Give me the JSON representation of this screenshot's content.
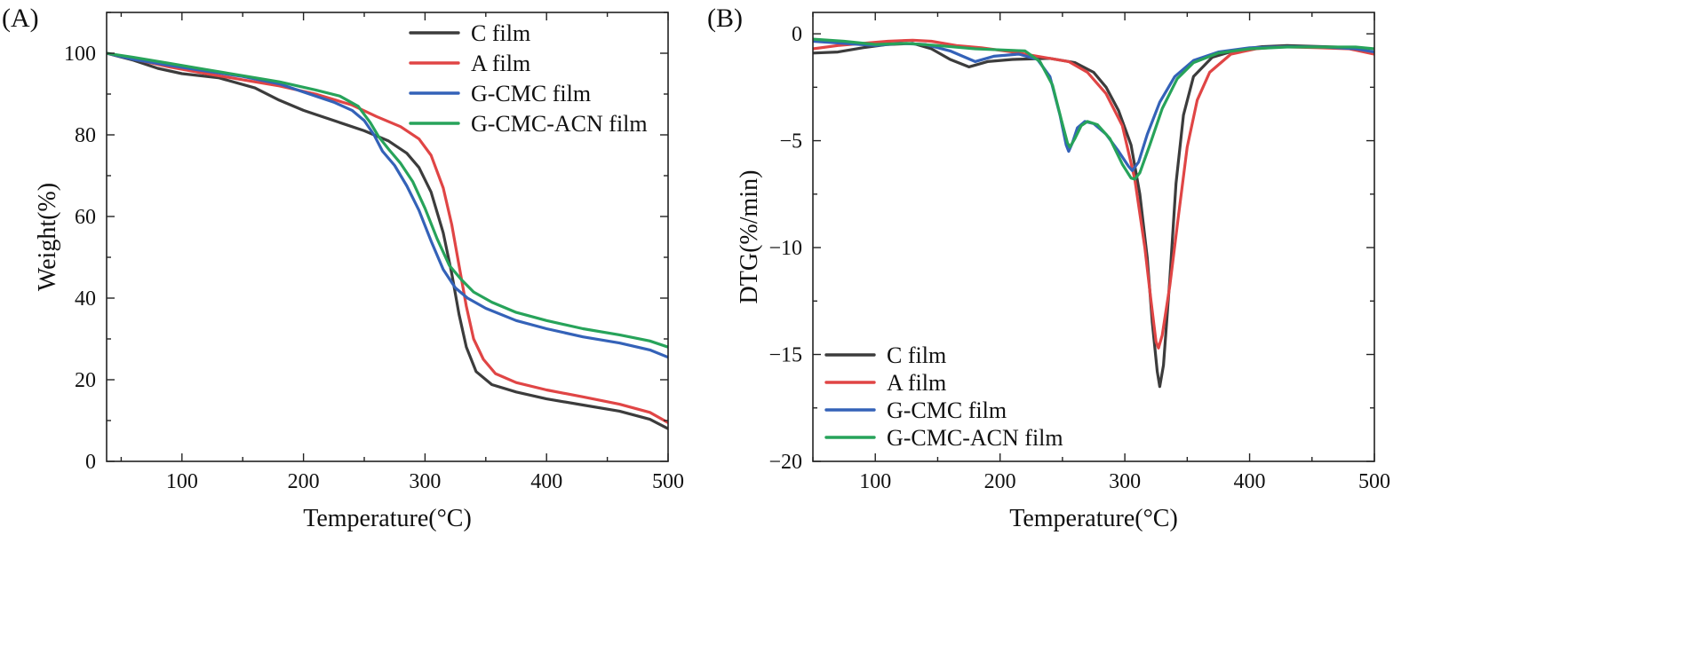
{
  "chart_data": [
    {
      "type": "line",
      "panel": "(A)",
      "xlabel": "Temperature(°C)",
      "ylabel": "Weight(%)",
      "xlim": [
        38,
        500
      ],
      "ylim": [
        0,
        110
      ],
      "xticks": [
        100,
        200,
        300,
        400,
        500
      ],
      "yticks": [
        0,
        20,
        40,
        60,
        80,
        100
      ],
      "legend_position": "top-right",
      "series": [
        {
          "name": "C film",
          "color": "#3c3c3c",
          "points": [
            [
              38,
              100
            ],
            [
              60,
              98.3
            ],
            [
              80,
              96.3
            ],
            [
              100,
              95
            ],
            [
              130,
              94
            ],
            [
              160,
              91.5
            ],
            [
              180,
              88.5
            ],
            [
              200,
              86
            ],
            [
              230,
              83
            ],
            [
              250,
              81
            ],
            [
              270,
              78.5
            ],
            [
              285,
              75.5
            ],
            [
              295,
              72
            ],
            [
              305,
              66
            ],
            [
              315,
              56
            ],
            [
              322,
              46
            ],
            [
              328,
              36
            ],
            [
              334,
              28
            ],
            [
              342,
              22
            ],
            [
              355,
              18.8
            ],
            [
              375,
              17
            ],
            [
              400,
              15.3
            ],
            [
              430,
              13.8
            ],
            [
              460,
              12.3
            ],
            [
              485,
              10.3
            ],
            [
              500,
              8
            ]
          ]
        },
        {
          "name": "A film",
          "color": "#e04545",
          "points": [
            [
              38,
              100
            ],
            [
              60,
              98.6
            ],
            [
              90,
              96.6
            ],
            [
              120,
              95
            ],
            [
              150,
              93.5
            ],
            [
              180,
              92
            ],
            [
              210,
              90
            ],
            [
              240,
              87.3
            ],
            [
              260,
              84.5
            ],
            [
              280,
              82
            ],
            [
              295,
              79
            ],
            [
              305,
              75
            ],
            [
              315,
              67
            ],
            [
              322,
              58
            ],
            [
              328,
              48
            ],
            [
              334,
              38
            ],
            [
              340,
              30
            ],
            [
              348,
              25
            ],
            [
              358,
              21.5
            ],
            [
              375,
              19.3
            ],
            [
              400,
              17.5
            ],
            [
              430,
              15.8
            ],
            [
              460,
              14
            ],
            [
              485,
              12
            ],
            [
              500,
              9.5
            ]
          ]
        },
        {
          "name": "G-CMC film",
          "color": "#3462b8",
          "points": [
            [
              38,
              100
            ],
            [
              60,
              98.5
            ],
            [
              90,
              97
            ],
            [
              120,
              95.6
            ],
            [
              150,
              94.3
            ],
            [
              180,
              92.5
            ],
            [
              200,
              90.5
            ],
            [
              225,
              88
            ],
            [
              240,
              86
            ],
            [
              250,
              83.5
            ],
            [
              258,
              80
            ],
            [
              265,
              76
            ],
            [
              275,
              72.5
            ],
            [
              285,
              67.5
            ],
            [
              295,
              61.5
            ],
            [
              305,
              54
            ],
            [
              315,
              47
            ],
            [
              325,
              42.5
            ],
            [
              335,
              40
            ],
            [
              350,
              37.5
            ],
            [
              375,
              34.5
            ],
            [
              400,
              32.5
            ],
            [
              430,
              30.5
            ],
            [
              460,
              29
            ],
            [
              485,
              27.3
            ],
            [
              500,
              25.5
            ]
          ]
        },
        {
          "name": "G-CMC-ACN film",
          "color": "#27a35a",
          "points": [
            [
              38,
              100
            ],
            [
              60,
              99
            ],
            [
              90,
              97.5
            ],
            [
              120,
              96
            ],
            [
              150,
              94.5
            ],
            [
              180,
              93
            ],
            [
              210,
              91
            ],
            [
              230,
              89.5
            ],
            [
              245,
              87
            ],
            [
              255,
              83
            ],
            [
              262,
              79.5
            ],
            [
              270,
              76.5
            ],
            [
              280,
              73
            ],
            [
              290,
              68.5
            ],
            [
              300,
              62
            ],
            [
              310,
              54.5
            ],
            [
              320,
              48
            ],
            [
              330,
              44.5
            ],
            [
              340,
              41.5
            ],
            [
              355,
              39
            ],
            [
              375,
              36.5
            ],
            [
              400,
              34.5
            ],
            [
              430,
              32.5
            ],
            [
              460,
              31
            ],
            [
              485,
              29.5
            ],
            [
              500,
              28
            ]
          ]
        }
      ]
    },
    {
      "type": "line",
      "panel": "(B)",
      "xlabel": "Temperature(°C)",
      "ylabel": "DTG(%/min)",
      "xlim": [
        50,
        500
      ],
      "ylim": [
        -20,
        1
      ],
      "xticks": [
        100,
        200,
        300,
        400,
        500
      ],
      "yticks": [
        0,
        -5,
        -10,
        -15,
        -20
      ],
      "legend_position": "bottom-left",
      "series": [
        {
          "name": "C film",
          "color": "#3c3c3c",
          "points": [
            [
              50,
              -0.9
            ],
            [
              70,
              -0.85
            ],
            [
              90,
              -0.65
            ],
            [
              110,
              -0.5
            ],
            [
              130,
              -0.45
            ],
            [
              145,
              -0.7
            ],
            [
              160,
              -1.2
            ],
            [
              175,
              -1.55
            ],
            [
              190,
              -1.3
            ],
            [
              210,
              -1.2
            ],
            [
              240,
              -1.15
            ],
            [
              260,
              -1.35
            ],
            [
              275,
              -1.8
            ],
            [
              285,
              -2.5
            ],
            [
              295,
              -3.6
            ],
            [
              305,
              -5.2
            ],
            [
              312,
              -7.5
            ],
            [
              318,
              -10.5
            ],
            [
              322,
              -13.5
            ],
            [
              326,
              -15.8
            ],
            [
              328,
              -16.5
            ],
            [
              331,
              -15.5
            ],
            [
              336,
              -11.5
            ],
            [
              341,
              -7
            ],
            [
              347,
              -3.8
            ],
            [
              355,
              -2
            ],
            [
              370,
              -1.1
            ],
            [
              390,
              -0.75
            ],
            [
              410,
              -0.6
            ],
            [
              430,
              -0.55
            ],
            [
              460,
              -0.6
            ],
            [
              485,
              -0.65
            ],
            [
              500,
              -0.9
            ]
          ]
        },
        {
          "name": "A film",
          "color": "#e04545",
          "points": [
            [
              50,
              -0.7
            ],
            [
              70,
              -0.55
            ],
            [
              90,
              -0.45
            ],
            [
              110,
              -0.35
            ],
            [
              130,
              -0.3
            ],
            [
              145,
              -0.35
            ],
            [
              165,
              -0.55
            ],
            [
              185,
              -0.65
            ],
            [
              210,
              -0.85
            ],
            [
              230,
              -1.05
            ],
            [
              255,
              -1.3
            ],
            [
              270,
              -1.8
            ],
            [
              285,
              -2.8
            ],
            [
              298,
              -4.3
            ],
            [
              308,
              -6.8
            ],
            [
              316,
              -10
            ],
            [
              321,
              -12.5
            ],
            [
              325,
              -14.4
            ],
            [
              327,
              -14.7
            ],
            [
              330,
              -14.1
            ],
            [
              336,
              -11.8
            ],
            [
              343,
              -8.5
            ],
            [
              350,
              -5.3
            ],
            [
              358,
              -3.1
            ],
            [
              368,
              -1.8
            ],
            [
              385,
              -0.95
            ],
            [
              405,
              -0.7
            ],
            [
              425,
              -0.6
            ],
            [
              455,
              -0.65
            ],
            [
              480,
              -0.7
            ],
            [
              500,
              -0.95
            ]
          ]
        },
        {
          "name": "G-CMC film",
          "color": "#3462b8",
          "points": [
            [
              50,
              -0.35
            ],
            [
              75,
              -0.45
            ],
            [
              100,
              -0.55
            ],
            [
              120,
              -0.45
            ],
            [
              140,
              -0.5
            ],
            [
              160,
              -0.8
            ],
            [
              180,
              -1.3
            ],
            [
              195,
              -1.05
            ],
            [
              215,
              -0.95
            ],
            [
              230,
              -1.2
            ],
            [
              240,
              -2
            ],
            [
              248,
              -3.8
            ],
            [
              253,
              -5.2
            ],
            [
              255,
              -5.5
            ],
            [
              258,
              -5.1
            ],
            [
              262,
              -4.4
            ],
            [
              268,
              -4.1
            ],
            [
              275,
              -4.2
            ],
            [
              285,
              -4.7
            ],
            [
              295,
              -5.5
            ],
            [
              303,
              -6.2
            ],
            [
              306,
              -6.4
            ],
            [
              311,
              -6
            ],
            [
              318,
              -4.7
            ],
            [
              328,
              -3.2
            ],
            [
              340,
              -2
            ],
            [
              355,
              -1.25
            ],
            [
              375,
              -0.85
            ],
            [
              400,
              -0.65
            ],
            [
              430,
              -0.6
            ],
            [
              460,
              -0.62
            ],
            [
              485,
              -0.7
            ],
            [
              500,
              -0.85
            ]
          ]
        },
        {
          "name": "G-CMC-ACN film",
          "color": "#27a35a",
          "points": [
            [
              50,
              -0.25
            ],
            [
              75,
              -0.35
            ],
            [
              100,
              -0.5
            ],
            [
              125,
              -0.45
            ],
            [
              150,
              -0.55
            ],
            [
              180,
              -0.7
            ],
            [
              200,
              -0.75
            ],
            [
              220,
              -0.8
            ],
            [
              232,
              -1.3
            ],
            [
              242,
              -2.4
            ],
            [
              249,
              -4
            ],
            [
              254,
              -5.1
            ],
            [
              256,
              -5.3
            ],
            [
              260,
              -4.9
            ],
            [
              265,
              -4.3
            ],
            [
              270,
              -4.1
            ],
            [
              278,
              -4.25
            ],
            [
              288,
              -4.9
            ],
            [
              298,
              -6.1
            ],
            [
              305,
              -6.75
            ],
            [
              308,
              -6.8
            ],
            [
              312,
              -6.5
            ],
            [
              320,
              -5.2
            ],
            [
              330,
              -3.5
            ],
            [
              342,
              -2.1
            ],
            [
              355,
              -1.35
            ],
            [
              375,
              -0.9
            ],
            [
              400,
              -0.7
            ],
            [
              430,
              -0.62
            ],
            [
              460,
              -0.62
            ],
            [
              485,
              -0.62
            ],
            [
              500,
              -0.7
            ]
          ]
        }
      ]
    }
  ]
}
